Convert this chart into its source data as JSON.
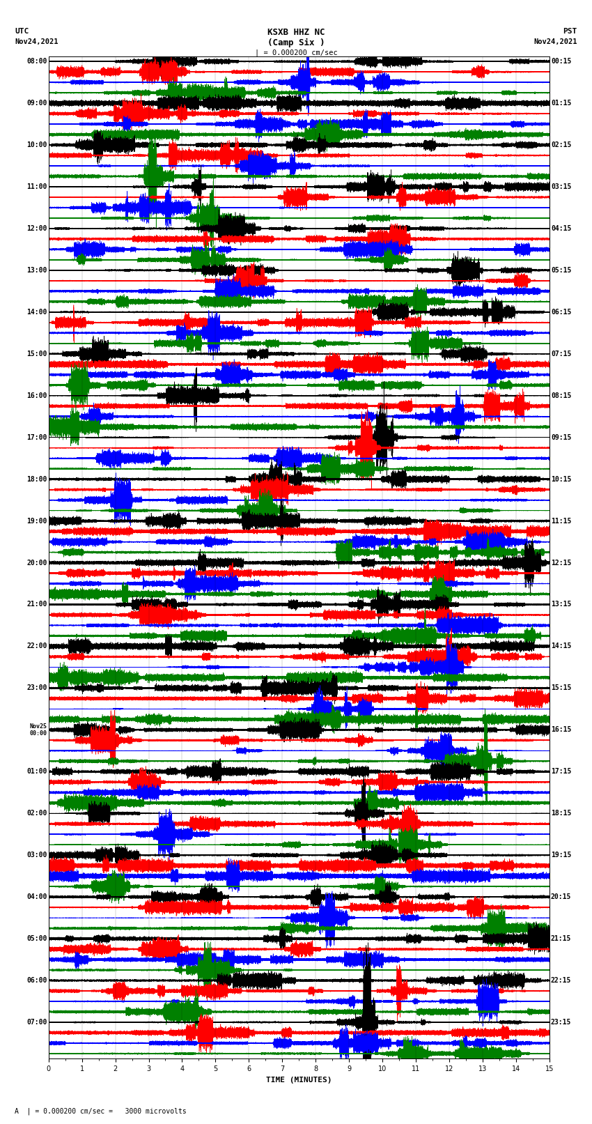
{
  "title_line1": "KSXB HHZ NC",
  "title_line2": "(Camp Six )",
  "scale_label": "| = 0.000200 cm/sec",
  "bottom_label": "A  | = 0.000200 cm/sec =   3000 microvolts",
  "xlabel": "TIME (MINUTES)",
  "colors": [
    "black",
    "red",
    "blue",
    "green"
  ],
  "n_groups": 24,
  "n_traces": 4,
  "minutes": 15,
  "sample_rate": 100,
  "left_times_utc": [
    "08:00",
    "09:00",
    "10:00",
    "11:00",
    "12:00",
    "13:00",
    "14:00",
    "15:00",
    "16:00",
    "17:00",
    "18:00",
    "19:00",
    "20:00",
    "21:00",
    "22:00",
    "23:00",
    "00:00",
    "01:00",
    "02:00",
    "03:00",
    "04:00",
    "05:00",
    "06:00",
    "07:00"
  ],
  "right_times_pst": [
    "00:15",
    "01:15",
    "02:15",
    "03:15",
    "04:15",
    "05:15",
    "06:15",
    "07:15",
    "08:15",
    "09:15",
    "10:15",
    "11:15",
    "12:15",
    "13:15",
    "14:15",
    "15:15",
    "16:15",
    "17:15",
    "18:15",
    "19:15",
    "20:15",
    "21:15",
    "22:15",
    "23:15"
  ],
  "nov25_group": 16,
  "fig_width": 8.5,
  "fig_height": 16.13,
  "dpi": 100,
  "background_color": "white",
  "noise_seed": 42
}
